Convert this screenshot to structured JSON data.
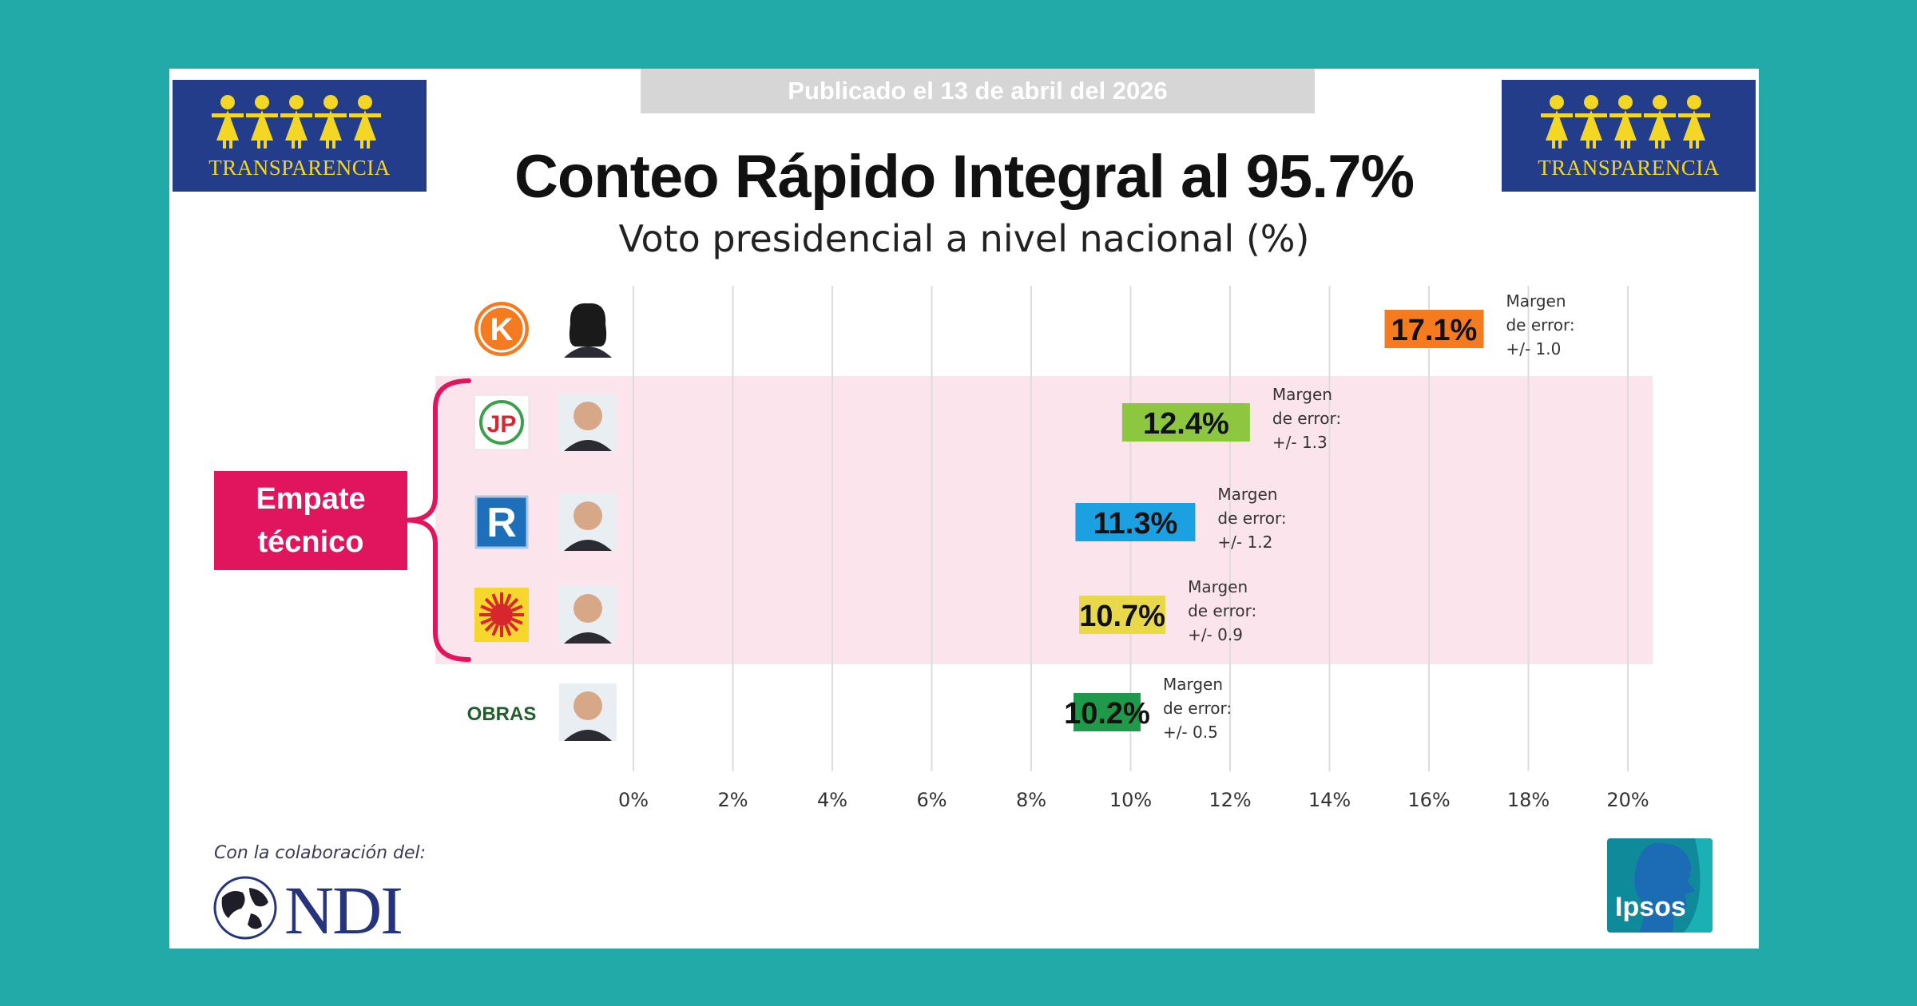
{
  "header": {
    "published": "Publicado el 13 de abril del 2026",
    "title": "Conteo Rápido Integral al 95.7%",
    "subtitle": "Voto presidencial a nivel nacional (%)"
  },
  "logos": {
    "left_brand": "TRANSPARENCIA",
    "right_brand": "TRANSPARENCIA",
    "collab_label": "Con la colaboración del:",
    "ndi": "NDI",
    "ipsos": "Ipsos"
  },
  "empate_label": [
    "Empate",
    "técnico"
  ],
  "party_marks": [
    "K",
    "JP",
    "R",
    "",
    "OBRAS"
  ],
  "colors": {
    "background": "#22aaa9",
    "highlight_band": "#fce4ec",
    "empate": "#e0155e",
    "transparencia_blue": "#233d8a",
    "transparencia_yellow": "#f4d624"
  },
  "chart_data": {
    "type": "bar",
    "orientation": "horizontal",
    "xlim": [
      0,
      20
    ],
    "ticks": [
      "0%",
      "2%",
      "4%",
      "6%",
      "8%",
      "10%",
      "12%",
      "14%",
      "16%",
      "18%",
      "20%"
    ],
    "grid": true,
    "values": [
      17.1,
      12.4,
      11.3,
      10.7,
      10.2
    ],
    "labels": [
      "17.1%",
      "12.4%",
      "11.3%",
      "10.7%",
      "10.2%"
    ],
    "bar_colors": [
      "#f47b20",
      "#8dc63f",
      "#1ba1e2",
      "#e8d84a",
      "#1f9a4b"
    ],
    "margins": [
      [
        "Margen",
        "de error:",
        "+/- 1.0"
      ],
      [
        "Margen",
        "de error:",
        "+/- 1.3"
      ],
      [
        "Margen",
        "de error:",
        "+/- 1.2"
      ],
      [
        "Margen",
        "de error:",
        "+/- 0.9"
      ],
      [
        "Margen",
        "de error:",
        "+/- 0.5"
      ]
    ],
    "highlighted_rows": [
      1,
      2,
      3
    ]
  }
}
